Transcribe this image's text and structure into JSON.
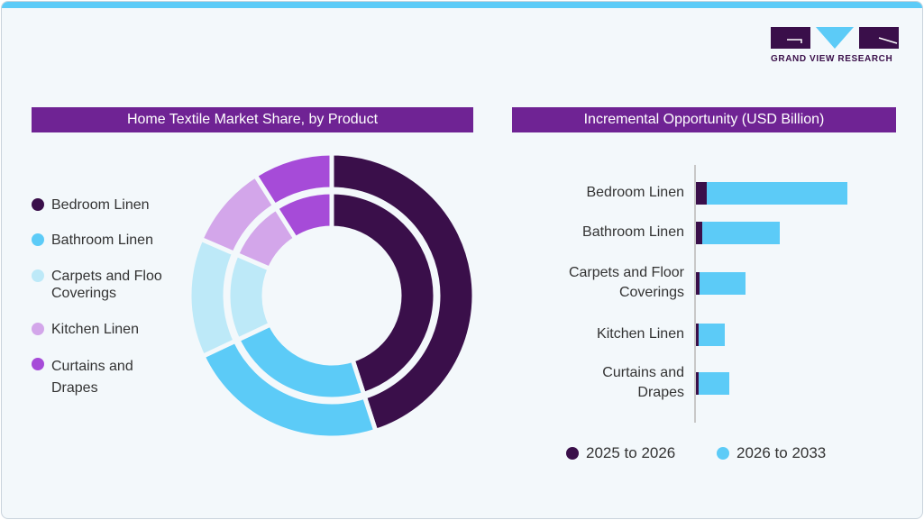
{
  "brand": {
    "name": "GRAND VIEW RESEARCH"
  },
  "colors": {
    "bedroom": "#3a0f4a",
    "bathroom": "#5ccbf7",
    "carpets": "#bde9f8",
    "kitchen": "#d3a6ea",
    "curtains": "#a64bd8",
    "header": "#6f2394"
  },
  "chart_data": [
    {
      "type": "pie",
      "title": "Home Textile Market Share, by Product",
      "categories": [
        "Bedroom Linen",
        "Bathroom Linen",
        "Carpets and Floo Coverings",
        "Kitchen Linen",
        "Curtains and Drapes"
      ],
      "legend_labels": [
        "Bedroom Linen",
        "Bathroom Linen",
        "Carpets and Floo\nCoverings",
        "Kitchen Linen",
        "Curtains and\nDrapes"
      ],
      "values": [
        45,
        23,
        13.5,
        9.5,
        9
      ],
      "legend": "left"
    },
    {
      "type": "bar",
      "orientation": "horizontal",
      "stacked": true,
      "title": "Incremental Opportunity (USD Billion)",
      "categories": [
        "Bedroom Linen",
        "Bathroom Linen",
        "Carpets and Floor\nCoverings",
        "Kitchen Linen",
        "Curtains and\nDrapes"
      ],
      "series": [
        {
          "name": "2025 to 2026",
          "values": [
            12,
            7,
            4,
            3,
            3
          ]
        },
        {
          "name": "2026 to 2033",
          "values": [
            156,
            86,
            51,
            29,
            34
          ]
        }
      ],
      "legend": "bottom"
    }
  ]
}
